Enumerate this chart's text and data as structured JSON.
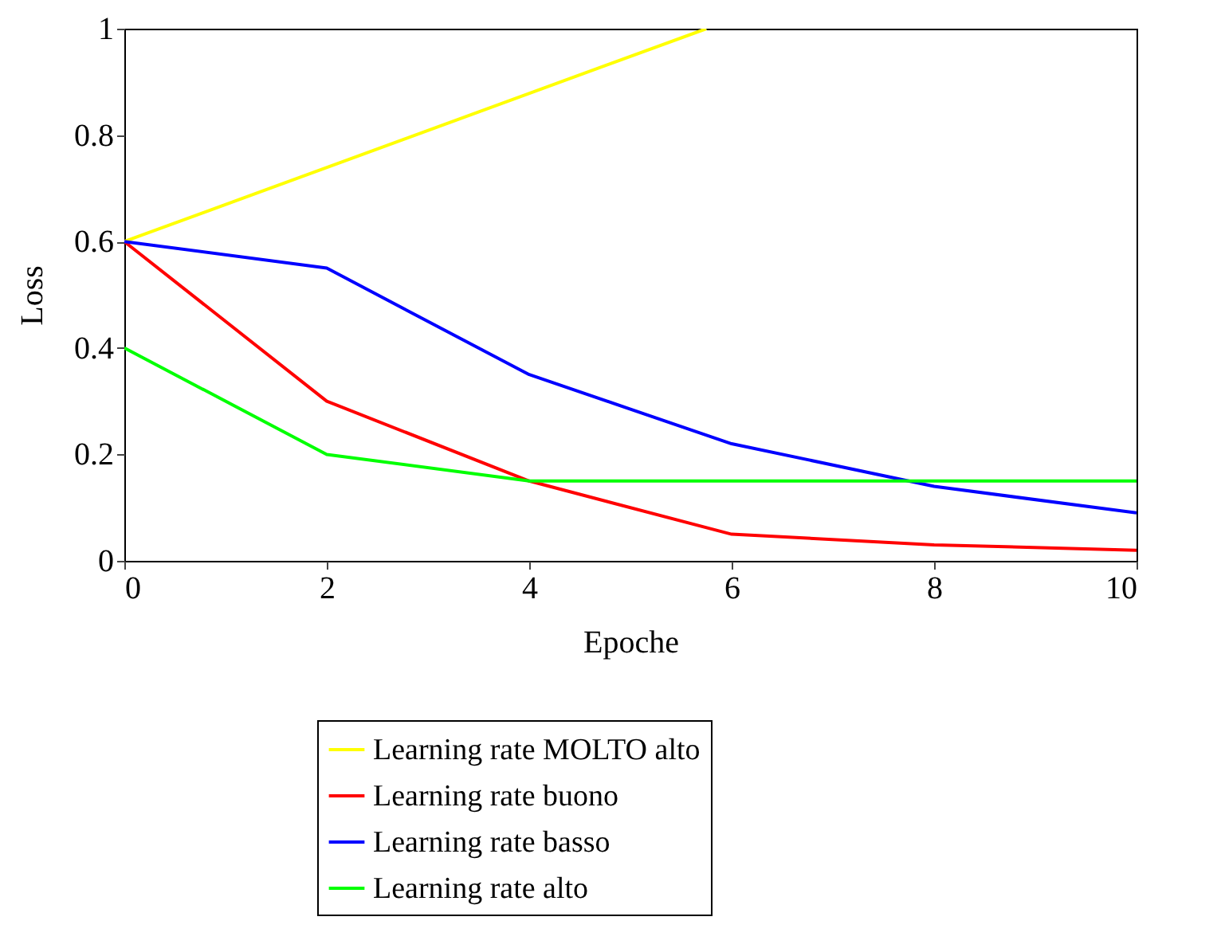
{
  "chart_data": {
    "type": "line",
    "xlabel": "Epoche",
    "ylabel": "Loss",
    "x": [
      0,
      2,
      4,
      6,
      8,
      10
    ],
    "series": [
      {
        "name": "Learning rate MOLTO alto",
        "color": "#ffff00",
        "x": [
          0,
          5.75
        ],
        "values": [
          0.6,
          1.0
        ]
      },
      {
        "name": "Learning rate buono",
        "color": "#ff0000",
        "values": [
          0.6,
          0.3,
          0.15,
          0.05,
          0.03,
          0.02
        ]
      },
      {
        "name": "Learning rate basso",
        "color": "#0000ff",
        "values": [
          0.6,
          0.55,
          0.35,
          0.22,
          0.14,
          0.09
        ]
      },
      {
        "name": "Learning rate alto",
        "color": "#00ff00",
        "values": [
          0.4,
          0.2,
          0.15,
          0.15,
          0.15,
          0.15
        ]
      }
    ],
    "xlim": [
      0,
      10
    ],
    "xticks": [
      0,
      2,
      4,
      6,
      8,
      10
    ],
    "ylim": [
      0,
      1
    ],
    "yticks": [
      0,
      0.2,
      0.4,
      0.6,
      0.8,
      1
    ],
    "grid": false,
    "legend": "bottom",
    "marker": "none",
    "line_style": "solid"
  }
}
